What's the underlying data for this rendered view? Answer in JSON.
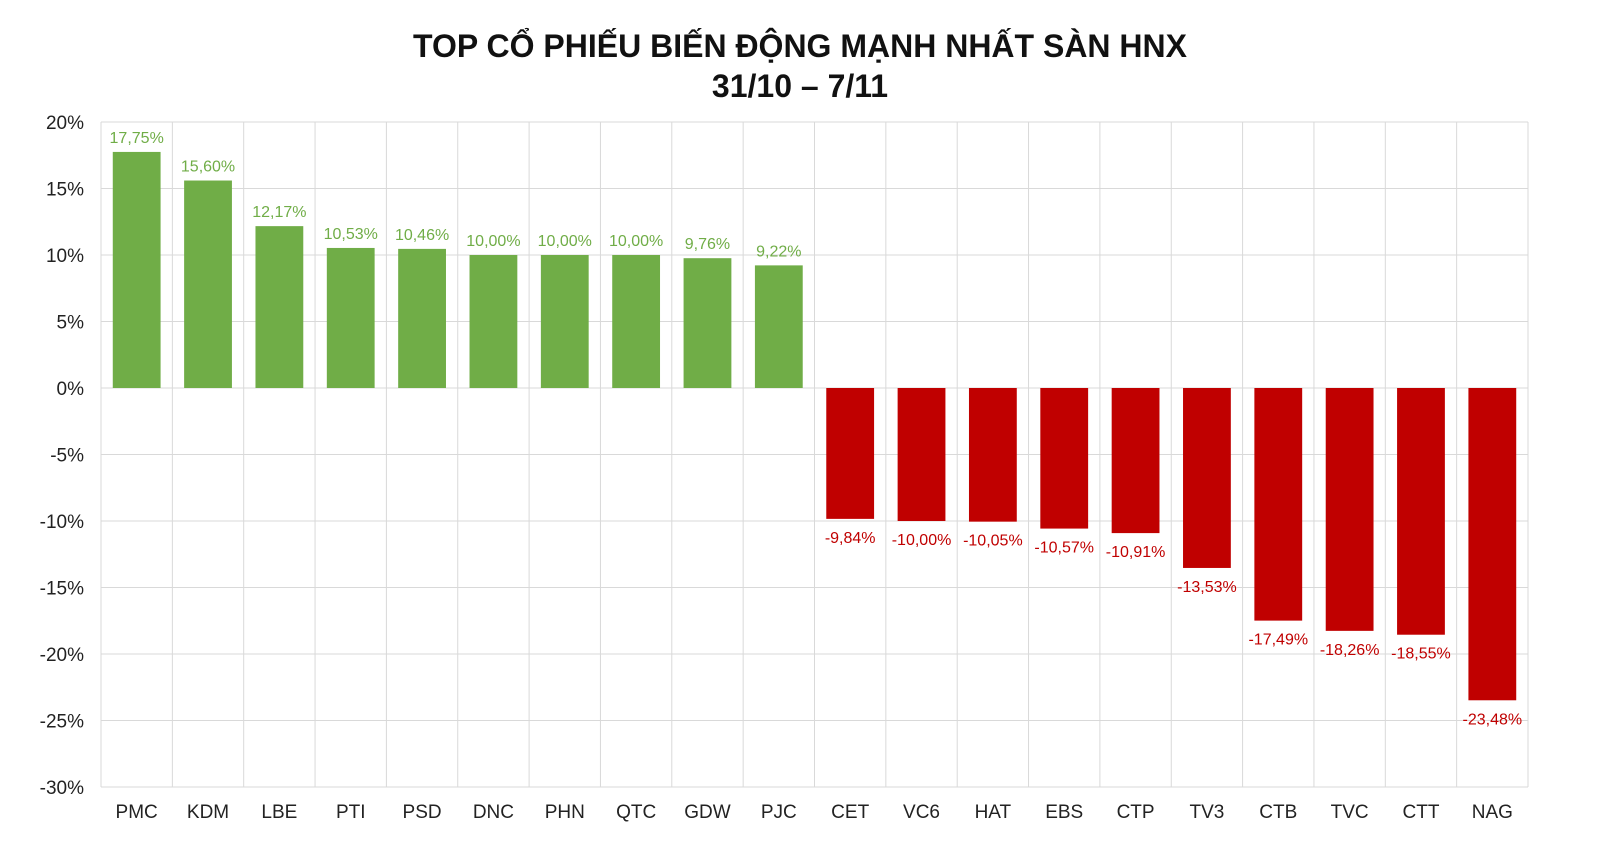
{
  "chart_data": {
    "type": "bar",
    "title": "TOP CỔ PHIẾU BIẾN ĐỘNG MẠNH NHẤT SÀN HNX",
    "subtitle": "31/10 – 7/11",
    "categories": [
      "PMC",
      "KDM",
      "LBE",
      "PTI",
      "PSD",
      "DNC",
      "PHN",
      "QTC",
      "GDW",
      "PJC",
      "CET",
      "VC6",
      "HAT",
      "EBS",
      "CTP",
      "TV3",
      "CTB",
      "TVC",
      "CTT",
      "NAG"
    ],
    "values": [
      17.75,
      15.6,
      12.17,
      10.53,
      10.46,
      10.0,
      10.0,
      10.0,
      9.76,
      9.22,
      -9.84,
      -10.0,
      -10.05,
      -10.57,
      -10.91,
      -13.53,
      -17.49,
      -18.26,
      -18.55,
      -23.48
    ],
    "data_labels": [
      "17,75%",
      "15,60%",
      "12,17%",
      "10,53%",
      "10,46%",
      "10,00%",
      "10,00%",
      "10,00%",
      "9,76%",
      "9,22%",
      "-9,84%",
      "-10,00%",
      "-10,05%",
      "-10,57%",
      "-10,91%",
      "-13,53%",
      "-17,49%",
      "-18,26%",
      "-18,55%",
      "-23,48%"
    ],
    "y_ticks": [
      20,
      15,
      10,
      5,
      0,
      -5,
      -10,
      -15,
      -20,
      -25,
      -30
    ],
    "y_tick_labels": [
      "20%",
      "15%",
      "10%",
      "5%",
      "0%",
      "-5%",
      "-10%",
      "-15%",
      "-20%",
      "-25%",
      "-30%"
    ],
    "ylim": [
      -30,
      20
    ],
    "grid": true,
    "xlabel": "",
    "ylabel": "",
    "colors": {
      "positive_bar": "#70ad47",
      "negative_bar": "#c00000",
      "positive_label": "#70ad47",
      "negative_label": "#c00000",
      "grid": "#d9d9d9"
    }
  }
}
